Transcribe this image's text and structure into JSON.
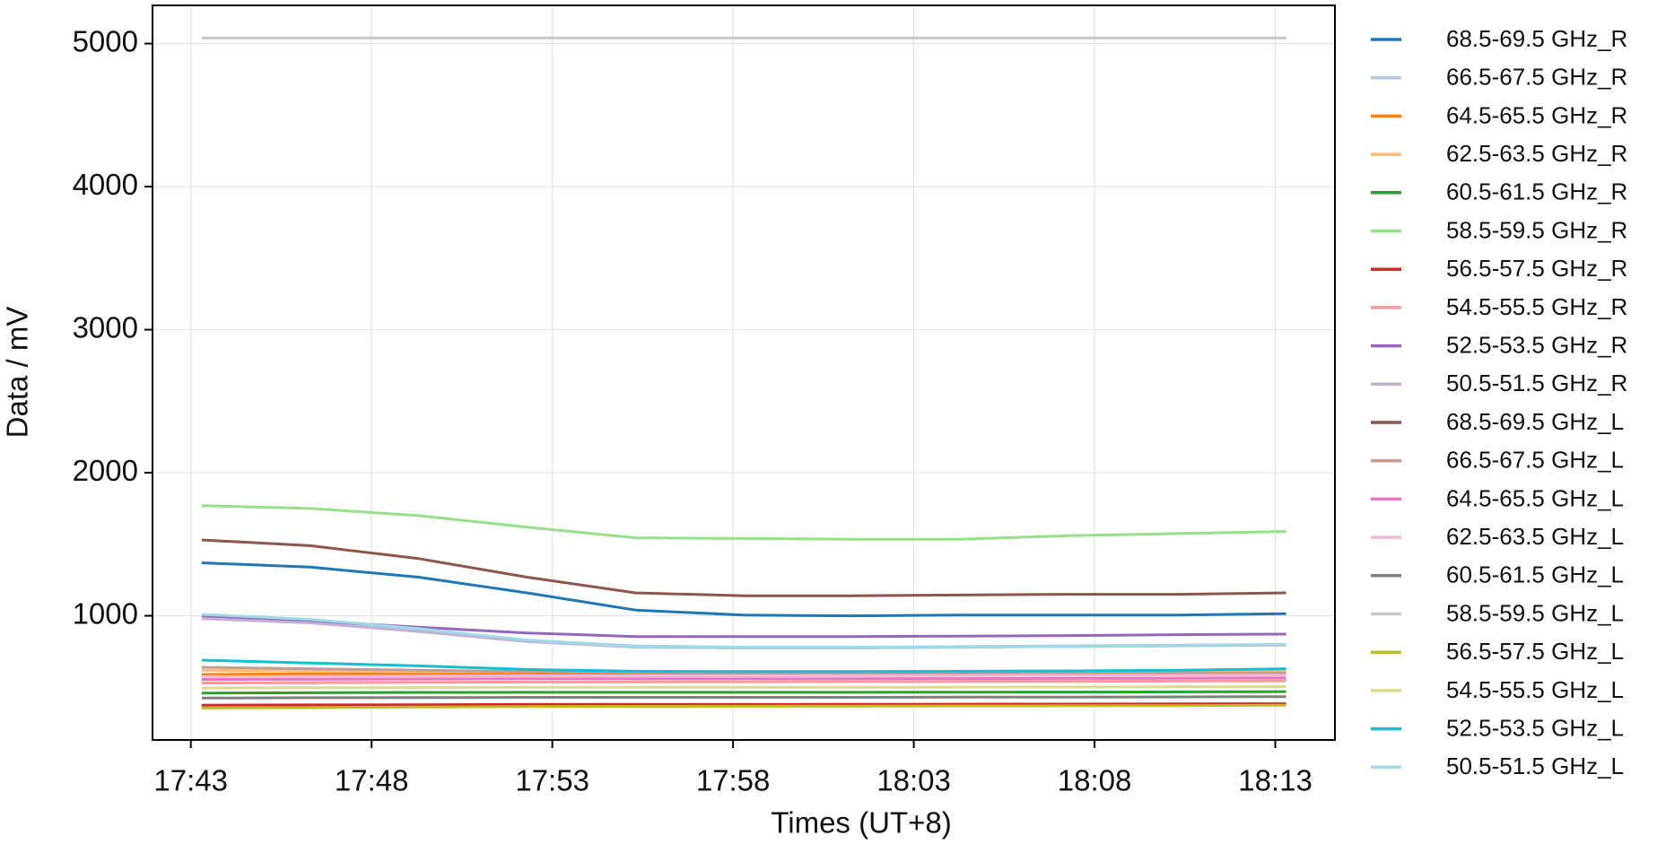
{
  "chart_data": {
    "type": "line",
    "xlabel": "Times (UT+8)",
    "ylabel": "Data / mV",
    "x": [
      1063.3,
      1066.3,
      1069.3,
      1072.3,
      1075.3,
      1078.3,
      1081.3,
      1084.3,
      1087.3,
      1090.3,
      1093.3
    ],
    "xlim": [
      1061.94,
      1094.65
    ],
    "xticks": [
      {
        "value": 1063,
        "label": "17:43"
      },
      {
        "value": 1068,
        "label": "17:48"
      },
      {
        "value": 1073,
        "label": "17:53"
      },
      {
        "value": 1078,
        "label": "17:58"
      },
      {
        "value": 1083,
        "label": "18:03"
      },
      {
        "value": 1088,
        "label": "18:08"
      },
      {
        "value": 1093,
        "label": "18:13"
      }
    ],
    "ylim": [
      132,
      5267
    ],
    "yticks": [
      1000,
      2000,
      3000,
      4000,
      5000
    ],
    "grid": true,
    "series": [
      {
        "name": "68.5-69.5 GHz_R",
        "color": "#1f77b4",
        "values": [
          1370,
          1340,
          1270,
          1160,
          1040,
          1005,
          1000,
          1005,
          1005,
          1005,
          1015
        ]
      },
      {
        "name": "66.5-67.5 GHz_R",
        "color": "#aec7e8",
        "values": [
          1000,
          960,
          900,
          830,
          790,
          780,
          780,
          785,
          790,
          795,
          800
        ]
      },
      {
        "name": "64.5-65.5 GHz_R",
        "color": "#ff7f0e",
        "values": [
          590,
          595,
          595,
          595,
          595,
          595,
          595,
          595,
          595,
          595,
          595
        ]
      },
      {
        "name": "62.5-63.5 GHz_R",
        "color": "#ffbb78",
        "values": [
          620,
          615,
          610,
          610,
          610,
          610,
          610,
          610,
          610,
          610,
          615
        ]
      },
      {
        "name": "60.5-61.5 GHz_R",
        "color": "#2ca02c",
        "values": [
          460,
          462,
          464,
          465,
          465,
          465,
          465,
          466,
          467,
          468,
          470
        ]
      },
      {
        "name": "58.5-59.5 GHz_R",
        "color": "#98df8a",
        "values": [
          1770,
          1750,
          1700,
          1620,
          1545,
          1540,
          1535,
          1535,
          1560,
          1575,
          1590
        ]
      },
      {
        "name": "56.5-57.5 GHz_R",
        "color": "#d62728",
        "values": [
          375,
          377,
          378,
          380,
          380,
          380,
          381,
          382,
          383,
          384,
          385
        ]
      },
      {
        "name": "54.5-55.5 GHz_R",
        "color": "#ff9896",
        "values": [
          530,
          532,
          535,
          537,
          538,
          539,
          540,
          541,
          542,
          543,
          545
        ]
      },
      {
        "name": "52.5-53.5 GHz_R",
        "color": "#9467bd",
        "values": [
          1000,
          965,
          920,
          880,
          855,
          855,
          855,
          858,
          862,
          868,
          872
        ]
      },
      {
        "name": "50.5-51.5 GHz_R",
        "color": "#c5b0d5",
        "values": [
          980,
          950,
          890,
          820,
          780,
          775,
          775,
          780,
          785,
          790,
          795
        ]
      },
      {
        "name": "68.5-69.5 GHz_L",
        "color": "#8c564b",
        "values": [
          1530,
          1490,
          1400,
          1270,
          1160,
          1140,
          1140,
          1145,
          1150,
          1150,
          1160
        ]
      },
      {
        "name": "66.5-67.5 GHz_L",
        "color": "#c49c94",
        "values": [
          640,
          630,
          620,
          610,
          605,
          600,
          600,
          600,
          600,
          600,
          600
        ]
      },
      {
        "name": "64.5-65.5 GHz_L",
        "color": "#e377c2",
        "values": [
          555,
          556,
          558,
          560,
          560,
          560,
          560,
          561,
          562,
          563,
          565
        ]
      },
      {
        "name": "62.5-63.5 GHz_L",
        "color": "#f7b6d2",
        "values": [
          575,
          576,
          578,
          580,
          580,
          580,
          580,
          581,
          582,
          583,
          585
        ]
      },
      {
        "name": "60.5-61.5 GHz_L",
        "color": "#7f7f7f",
        "values": [
          425,
          427,
          428,
          430,
          430,
          430,
          430,
          431,
          432,
          433,
          435
        ]
      },
      {
        "name": "58.5-59.5 GHz_L",
        "color": "#c7c7c7",
        "values": [
          5040,
          5040,
          5040,
          5040,
          5040,
          5040,
          5040,
          5040,
          5040,
          5040,
          5040
        ]
      },
      {
        "name": "56.5-57.5 GHz_L",
        "color": "#bcbd22",
        "values": [
          355,
          358,
          362,
          365,
          367,
          368,
          369,
          370,
          371,
          372,
          375
        ]
      },
      {
        "name": "54.5-55.5 GHz_L",
        "color": "#dbdb8d",
        "values": [
          495,
          497,
          498,
          500,
          500,
          500,
          500,
          501,
          502,
          503,
          505
        ]
      },
      {
        "name": "52.5-53.5 GHz_L",
        "color": "#17becf",
        "values": [
          690,
          670,
          650,
          625,
          612,
          610,
          610,
          612,
          615,
          620,
          630
        ]
      },
      {
        "name": "50.5-51.5 GHz_L",
        "color": "#9edae5",
        "values": [
          1010,
          975,
          910,
          830,
          785,
          780,
          780,
          782,
          785,
          790,
          800
        ]
      }
    ]
  }
}
